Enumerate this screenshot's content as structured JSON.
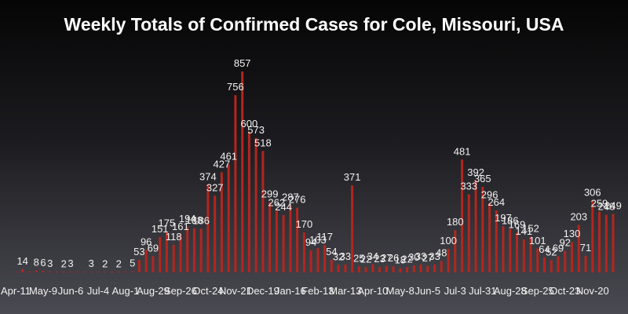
{
  "chart_data": {
    "type": "bar",
    "title": "Weekly Totals of Confirmed Cases for Cole, Missouri, USA",
    "xlabel": "",
    "ylabel": "",
    "ylim": [
      0,
      900
    ],
    "grid": false,
    "colors": {
      "bar": "#b3261e",
      "text": "#ffffff"
    },
    "tick_labels": [
      "Apr-11",
      "May-9",
      "Jun-6",
      "Jul-4",
      "Aug-1",
      "Aug-29",
      "Sep-26",
      "Oct-24",
      "Nov-21",
      "Dec-19",
      "Jan-16",
      "Feb-13",
      "Mar-13",
      "Apr-10",
      "May-8",
      "Jun-5",
      "Jul-3",
      "Jul-31",
      "Aug-28",
      "Sep-25",
      "Oct-23",
      "Nov-20"
    ],
    "values": [
      1,
      14,
      1,
      8,
      6,
      3,
      1,
      2,
      3,
      1,
      1,
      3,
      1,
      2,
      1,
      2,
      1,
      5,
      53,
      96,
      69,
      151,
      175,
      118,
      161,
      194,
      188,
      186,
      374,
      327,
      427,
      461,
      756,
      857,
      600,
      573,
      518,
      299,
      262,
      244,
      287,
      276,
      170,
      94,
      103,
      117,
      54,
      32,
      33,
      371,
      25,
      22,
      34,
      23,
      27,
      26,
      18,
      22,
      30,
      33,
      27,
      33,
      48,
      100,
      180,
      481,
      333,
      392,
      365,
      296,
      264,
      197,
      186,
      169,
      141,
      152,
      101,
      64,
      52,
      69,
      92,
      130,
      203,
      71,
      306,
      259,
      246,
      249
    ]
  }
}
